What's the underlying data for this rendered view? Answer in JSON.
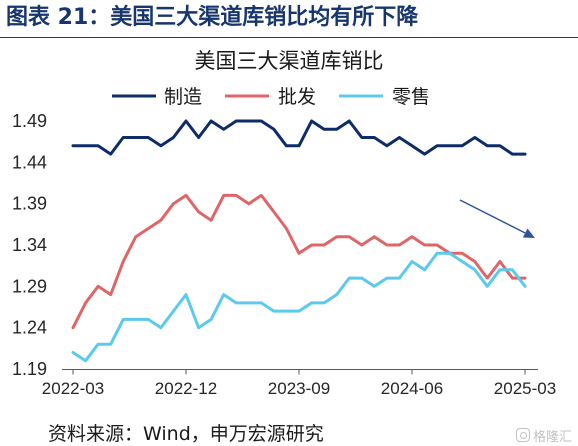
{
  "header": {
    "title": "图表 21：美国三大渠道库销比均有所下降"
  },
  "source": "资料来源：Wind，申万宏源研究",
  "watermark": "格隆汇",
  "colors": {
    "header_text": "#17366E",
    "annotation_arrow": "#2F5597"
  },
  "chart_data": {
    "type": "line",
    "title": "美国三大渠道库销比",
    "x": [
      "2022-03",
      "2022-04",
      "2022-05",
      "2022-06",
      "2022-07",
      "2022-08",
      "2022-09",
      "2022-10",
      "2022-11",
      "2022-12",
      "2023-01",
      "2023-02",
      "2023-03",
      "2023-04",
      "2023-05",
      "2023-06",
      "2023-07",
      "2023-08",
      "2023-09",
      "2023-10",
      "2023-11",
      "2023-12",
      "2024-01",
      "2024-02",
      "2024-03",
      "2024-04",
      "2024-05",
      "2024-06",
      "2024-07",
      "2024-08",
      "2024-09",
      "2024-10",
      "2024-11",
      "2024-12",
      "2025-01",
      "2025-02",
      "2025-03"
    ],
    "x_ticks": [
      "2022-03",
      "2022-12",
      "2023-09",
      "2024-06",
      "2025-03"
    ],
    "y_ticks": [
      "1.19",
      "1.24",
      "1.29",
      "1.34",
      "1.39",
      "1.44",
      "1.49"
    ],
    "ylim": [
      1.19,
      1.49
    ],
    "grid": false,
    "legend_position": "top",
    "series": [
      {
        "name": "制造",
        "color": "#0E2C6A",
        "values": [
          1.46,
          1.46,
          1.46,
          1.45,
          1.47,
          1.47,
          1.47,
          1.46,
          1.47,
          1.49,
          1.47,
          1.49,
          1.48,
          1.49,
          1.49,
          1.49,
          1.48,
          1.46,
          1.46,
          1.49,
          1.48,
          1.48,
          1.49,
          1.47,
          1.47,
          1.46,
          1.47,
          1.46,
          1.45,
          1.46,
          1.46,
          1.46,
          1.47,
          1.46,
          1.46,
          1.45,
          1.45
        ]
      },
      {
        "name": "批发",
        "color": "#E06567",
        "values": [
          1.24,
          1.27,
          1.29,
          1.28,
          1.32,
          1.35,
          1.36,
          1.37,
          1.39,
          1.4,
          1.38,
          1.37,
          1.4,
          1.4,
          1.39,
          1.4,
          1.38,
          1.36,
          1.33,
          1.34,
          1.34,
          1.35,
          1.35,
          1.34,
          1.35,
          1.34,
          1.34,
          1.35,
          1.34,
          1.34,
          1.33,
          1.33,
          1.32,
          1.3,
          1.32,
          1.3,
          1.3
        ]
      },
      {
        "name": "零售",
        "color": "#5CC9EE",
        "values": [
          1.21,
          1.2,
          1.22,
          1.22,
          1.25,
          1.25,
          1.25,
          1.24,
          1.26,
          1.28,
          1.24,
          1.25,
          1.28,
          1.27,
          1.27,
          1.27,
          1.26,
          1.26,
          1.26,
          1.27,
          1.27,
          1.28,
          1.3,
          1.3,
          1.29,
          1.3,
          1.3,
          1.32,
          1.31,
          1.33,
          1.33,
          1.32,
          1.31,
          1.29,
          1.31,
          1.31,
          1.29
        ]
      }
    ]
  }
}
